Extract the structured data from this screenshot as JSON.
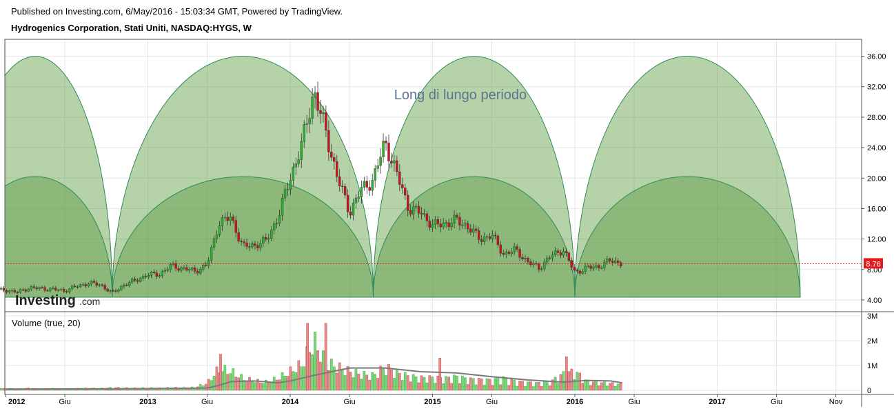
{
  "header": {
    "published": "Published on Investing.com, 6/May/2016 - 15:03:34 GMT, Powered by TradingView.",
    "title": "Hydrogenics Corporation, Stati Uniti, NASDAQ:HYGS, W"
  },
  "branding": {
    "logo_text_bold": "Investing",
    "logo_text_suffix": ".com"
  },
  "colors": {
    "up": "#2fb12f",
    "down": "#c9161a",
    "up_volume": "#74d874",
    "down_volume": "#e88a8a",
    "arc_fill": "#5c9b41",
    "arc_stroke": "#2e8b57",
    "price_line": "#e31a1c",
    "volume_ma": "#7a7a7a"
  },
  "chart_data": [
    {
      "type": "candlestick",
      "title": "Hydrogenics Corporation, Stati Uniti, NASDAQ:HYGS, W",
      "annotation": "Long di lungo periodo",
      "last_price_label": "8.76",
      "last_price": 8.76,
      "ylim": [
        3.0,
        37.5
      ],
      "y_ticks": [
        "4.00",
        "8.00",
        "12.00",
        "16.00",
        "20.00",
        "24.00",
        "28.00",
        "32.00",
        "36.00"
      ],
      "x_ticks": [
        {
          "label": "2012",
          "bold": true,
          "date": "2012-01"
        },
        {
          "label": "Giu",
          "bold": false,
          "date": "2012-06"
        },
        {
          "label": "2013",
          "bold": true,
          "date": "2013-01"
        },
        {
          "label": "Giu",
          "bold": false,
          "date": "2013-06"
        },
        {
          "label": "2014",
          "bold": true,
          "date": "2014-01"
        },
        {
          "label": "Giu",
          "bold": false,
          "date": "2014-06"
        },
        {
          "label": "2015",
          "bold": true,
          "date": "2015-01"
        },
        {
          "label": "Giu",
          "bold": false,
          "date": "2015-06"
        },
        {
          "label": "2016",
          "bold": true,
          "date": "2016-01"
        },
        {
          "label": "Giu",
          "bold": false,
          "date": "2016-06"
        },
        {
          "label": "2017",
          "bold": true,
          "date": "2017-01"
        },
        {
          "label": "Giu",
          "bold": false,
          "date": "2017-06"
        },
        {
          "label": "Nov",
          "bold": false,
          "date": "2017-11"
        }
      ],
      "cycle_arcs": {
        "large_lows": [
          "2011-09",
          "2012-10",
          "2014-08",
          "2016-01",
          "2017-08"
        ],
        "large_peak": 36.0,
        "small_lows": [
          "2011-09",
          "2012-10",
          "2014-08",
          "2016-01",
          "2017-08"
        ],
        "small_peak": 20.2
      },
      "price_closes": [
        [
          "2012-01",
          5.3
        ],
        [
          "2012-02",
          5.0
        ],
        [
          "2012-03",
          5.6
        ],
        [
          "2012-04",
          5.5
        ],
        [
          "2012-05",
          5.4
        ],
        [
          "2012-06",
          5.2
        ],
        [
          "2012-07",
          5.8
        ],
        [
          "2012-08",
          6.2
        ],
        [
          "2012-09",
          6.0
        ],
        [
          "2012-10",
          4.9
        ],
        [
          "2012-11",
          6.0
        ],
        [
          "2012-12",
          6.6
        ],
        [
          "2013-01",
          7.3
        ],
        [
          "2013-02",
          7.4
        ],
        [
          "2013-03",
          8.5
        ],
        [
          "2013-04",
          8.1
        ],
        [
          "2013-05",
          7.8
        ],
        [
          "2013-06",
          8.6
        ],
        [
          "2013-07",
          14.2
        ],
        [
          "2013-08",
          14.8
        ],
        [
          "2013-09",
          11.0
        ],
        [
          "2013-10",
          11.2
        ],
        [
          "2013-11",
          11.8
        ],
        [
          "2013-12",
          15.0
        ],
        [
          "2014-01",
          20.0
        ],
        [
          "2014-02",
          24.5
        ],
        [
          "2014-03",
          31.5
        ],
        [
          "2014-04",
          26.0
        ],
        [
          "2014-05",
          20.0
        ],
        [
          "2014-06",
          15.5
        ],
        [
          "2014-07",
          18.5
        ],
        [
          "2014-08",
          19.8
        ],
        [
          "2014-09",
          24.8
        ],
        [
          "2014-10",
          20.5
        ],
        [
          "2014-11",
          16.0
        ],
        [
          "2014-12",
          15.5
        ],
        [
          "2015-01",
          13.8
        ],
        [
          "2015-02",
          14.0
        ],
        [
          "2015-03",
          14.5
        ],
        [
          "2015-04",
          13.6
        ],
        [
          "2015-05",
          12.0
        ],
        [
          "2015-06",
          12.5
        ],
        [
          "2015-07",
          10.0
        ],
        [
          "2015-08",
          10.6
        ],
        [
          "2015-09",
          9.0
        ],
        [
          "2015-10",
          8.2
        ],
        [
          "2015-11",
          9.8
        ],
        [
          "2015-12",
          10.6
        ],
        [
          "2016-01",
          7.6
        ],
        [
          "2016-02",
          8.2
        ],
        [
          "2016-03",
          8.4
        ],
        [
          "2016-04",
          9.2
        ],
        [
          "2016-05",
          8.76
        ]
      ],
      "series": [
        {
          "name": "HYGS"
        }
      ]
    },
    {
      "type": "bar",
      "title": "Volume (true, 20)",
      "y_ticks": [
        "0",
        "1M",
        "2M",
        "3M"
      ],
      "ylim": [
        0,
        3000000
      ],
      "volume_monthly": [
        [
          "2012-01",
          60000
        ],
        [
          "2012-02",
          50000
        ],
        [
          "2012-03",
          70000
        ],
        [
          "2012-04",
          50000
        ],
        [
          "2012-05",
          60000
        ],
        [
          "2012-06",
          50000
        ],
        [
          "2012-07",
          60000
        ],
        [
          "2012-08",
          70000
        ],
        [
          "2012-09",
          60000
        ],
        [
          "2012-10",
          90000
        ],
        [
          "2012-11",
          80000
        ],
        [
          "2012-12",
          70000
        ],
        [
          "2013-01",
          80000
        ],
        [
          "2013-02",
          70000
        ],
        [
          "2013-03",
          90000
        ],
        [
          "2013-04",
          80000
        ],
        [
          "2013-05",
          100000
        ],
        [
          "2013-06",
          250000
        ],
        [
          "2013-07",
          750000
        ],
        [
          "2013-08",
          650000
        ],
        [
          "2013-09",
          420000
        ],
        [
          "2013-10",
          320000
        ],
        [
          "2013-11",
          280000
        ],
        [
          "2013-12",
          420000
        ],
        [
          "2014-01",
          650000
        ],
        [
          "2014-02",
          900000
        ],
        [
          "2014-03",
          1700000
        ],
        [
          "2014-04",
          950000
        ],
        [
          "2014-05",
          800000
        ],
        [
          "2014-06",
          650000
        ],
        [
          "2014-07",
          550000
        ],
        [
          "2014-08",
          500000
        ],
        [
          "2014-09",
          800000
        ],
        [
          "2014-10",
          600000
        ],
        [
          "2014-11",
          480000
        ],
        [
          "2014-12",
          420000
        ],
        [
          "2015-01",
          430000
        ],
        [
          "2015-02",
          400000
        ],
        [
          "2015-03",
          460000
        ],
        [
          "2015-04",
          380000
        ],
        [
          "2015-05",
          360000
        ],
        [
          "2015-06",
          340000
        ],
        [
          "2015-07",
          420000
        ],
        [
          "2015-08",
          300000
        ],
        [
          "2015-09",
          260000
        ],
        [
          "2015-10",
          240000
        ],
        [
          "2015-11",
          300000
        ],
        [
          "2015-12",
          550000
        ],
        [
          "2016-01",
          650000
        ],
        [
          "2016-02",
          300000
        ],
        [
          "2016-03",
          260000
        ],
        [
          "2016-04",
          230000
        ],
        [
          "2016-05",
          200000
        ]
      ],
      "volume_ma": [
        [
          "2012-01",
          50000
        ],
        [
          "2012-10",
          60000
        ],
        [
          "2013-06",
          90000
        ],
        [
          "2013-07",
          200000
        ],
        [
          "2013-08",
          350000
        ],
        [
          "2013-10",
          380000
        ],
        [
          "2013-12",
          300000
        ],
        [
          "2014-01",
          380000
        ],
        [
          "2014-03",
          600000
        ],
        [
          "2014-06",
          900000
        ],
        [
          "2014-09",
          900000
        ],
        [
          "2014-12",
          750000
        ],
        [
          "2015-03",
          700000
        ],
        [
          "2015-06",
          550000
        ],
        [
          "2015-09",
          420000
        ],
        [
          "2015-12",
          330000
        ],
        [
          "2016-02",
          400000
        ],
        [
          "2016-04",
          380000
        ],
        [
          "2016-05",
          300000
        ]
      ],
      "spikes": [
        [
          "2014-02-15",
          2700000
        ],
        [
          "2014-04-01",
          2700000
        ],
        [
          "2015-12-10",
          1350000
        ],
        [
          "2013-07-05",
          1450000
        ],
        [
          "2015-01-20",
          1300000
        ]
      ],
      "series": [
        {
          "name": "Volume (true, 20)"
        }
      ]
    }
  ]
}
